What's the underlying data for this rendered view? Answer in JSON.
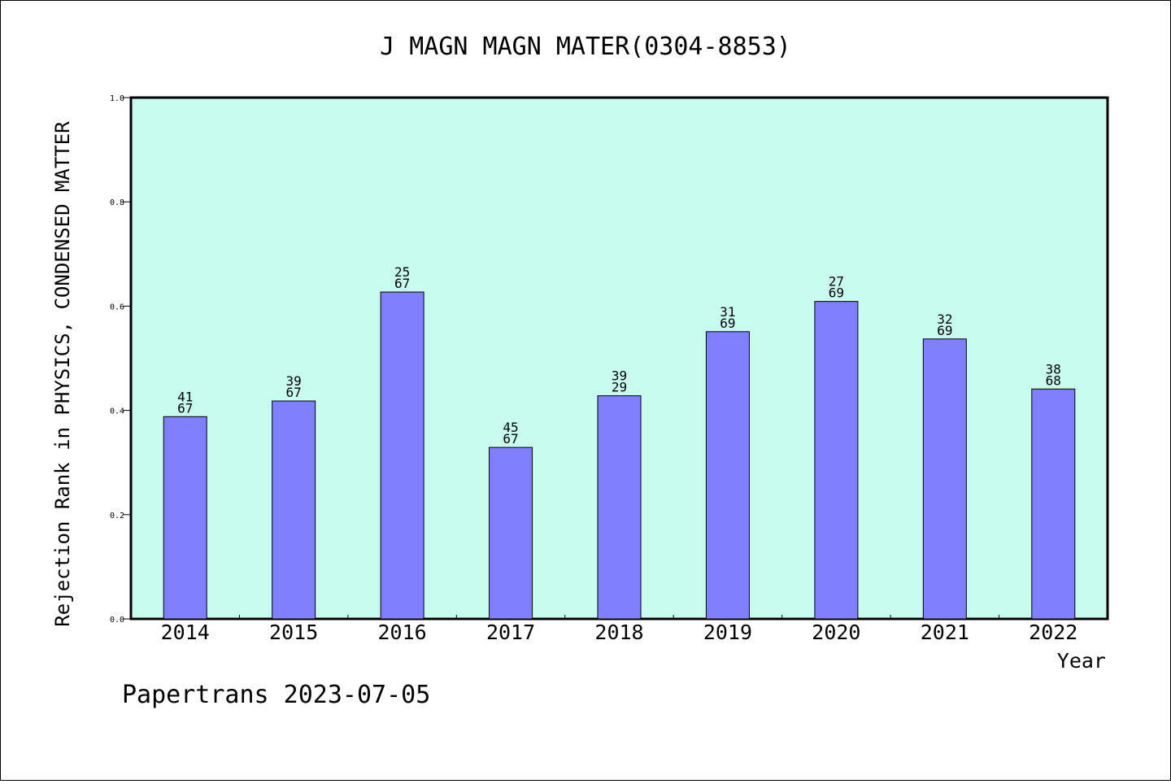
{
  "chart_data": {
    "type": "bar",
    "title": "J MAGN MAGN MATER(0304-8853)",
    "xlabel": "Year",
    "ylabel": "Rejection Rank in PHYSICS, CONDENSED MATTER",
    "ylim": [
      0,
      1.0
    ],
    "yticks": [
      "0.0",
      "0.2",
      "0.4",
      "0.6",
      "0.8",
      "1.0"
    ],
    "categories": [
      "2014",
      "2015",
      "2016",
      "2017",
      "2018",
      "2019",
      "2020",
      "2021",
      "2022"
    ],
    "values": [
      0.388,
      0.418,
      0.627,
      0.329,
      0.428,
      0.551,
      0.609,
      0.537,
      0.441
    ],
    "labels_top": [
      "41",
      "39",
      "25",
      "45",
      "39",
      "31",
      "27",
      "32",
      "38"
    ],
    "labels_bottom": [
      "67",
      "67",
      "67",
      "67",
      "29",
      "69",
      "69",
      "69",
      "68"
    ],
    "colors": {
      "plot_background": "#c8fcef",
      "bar": "#8080ff"
    },
    "grid": false
  },
  "footer": "Papertrans 2023-07-05"
}
